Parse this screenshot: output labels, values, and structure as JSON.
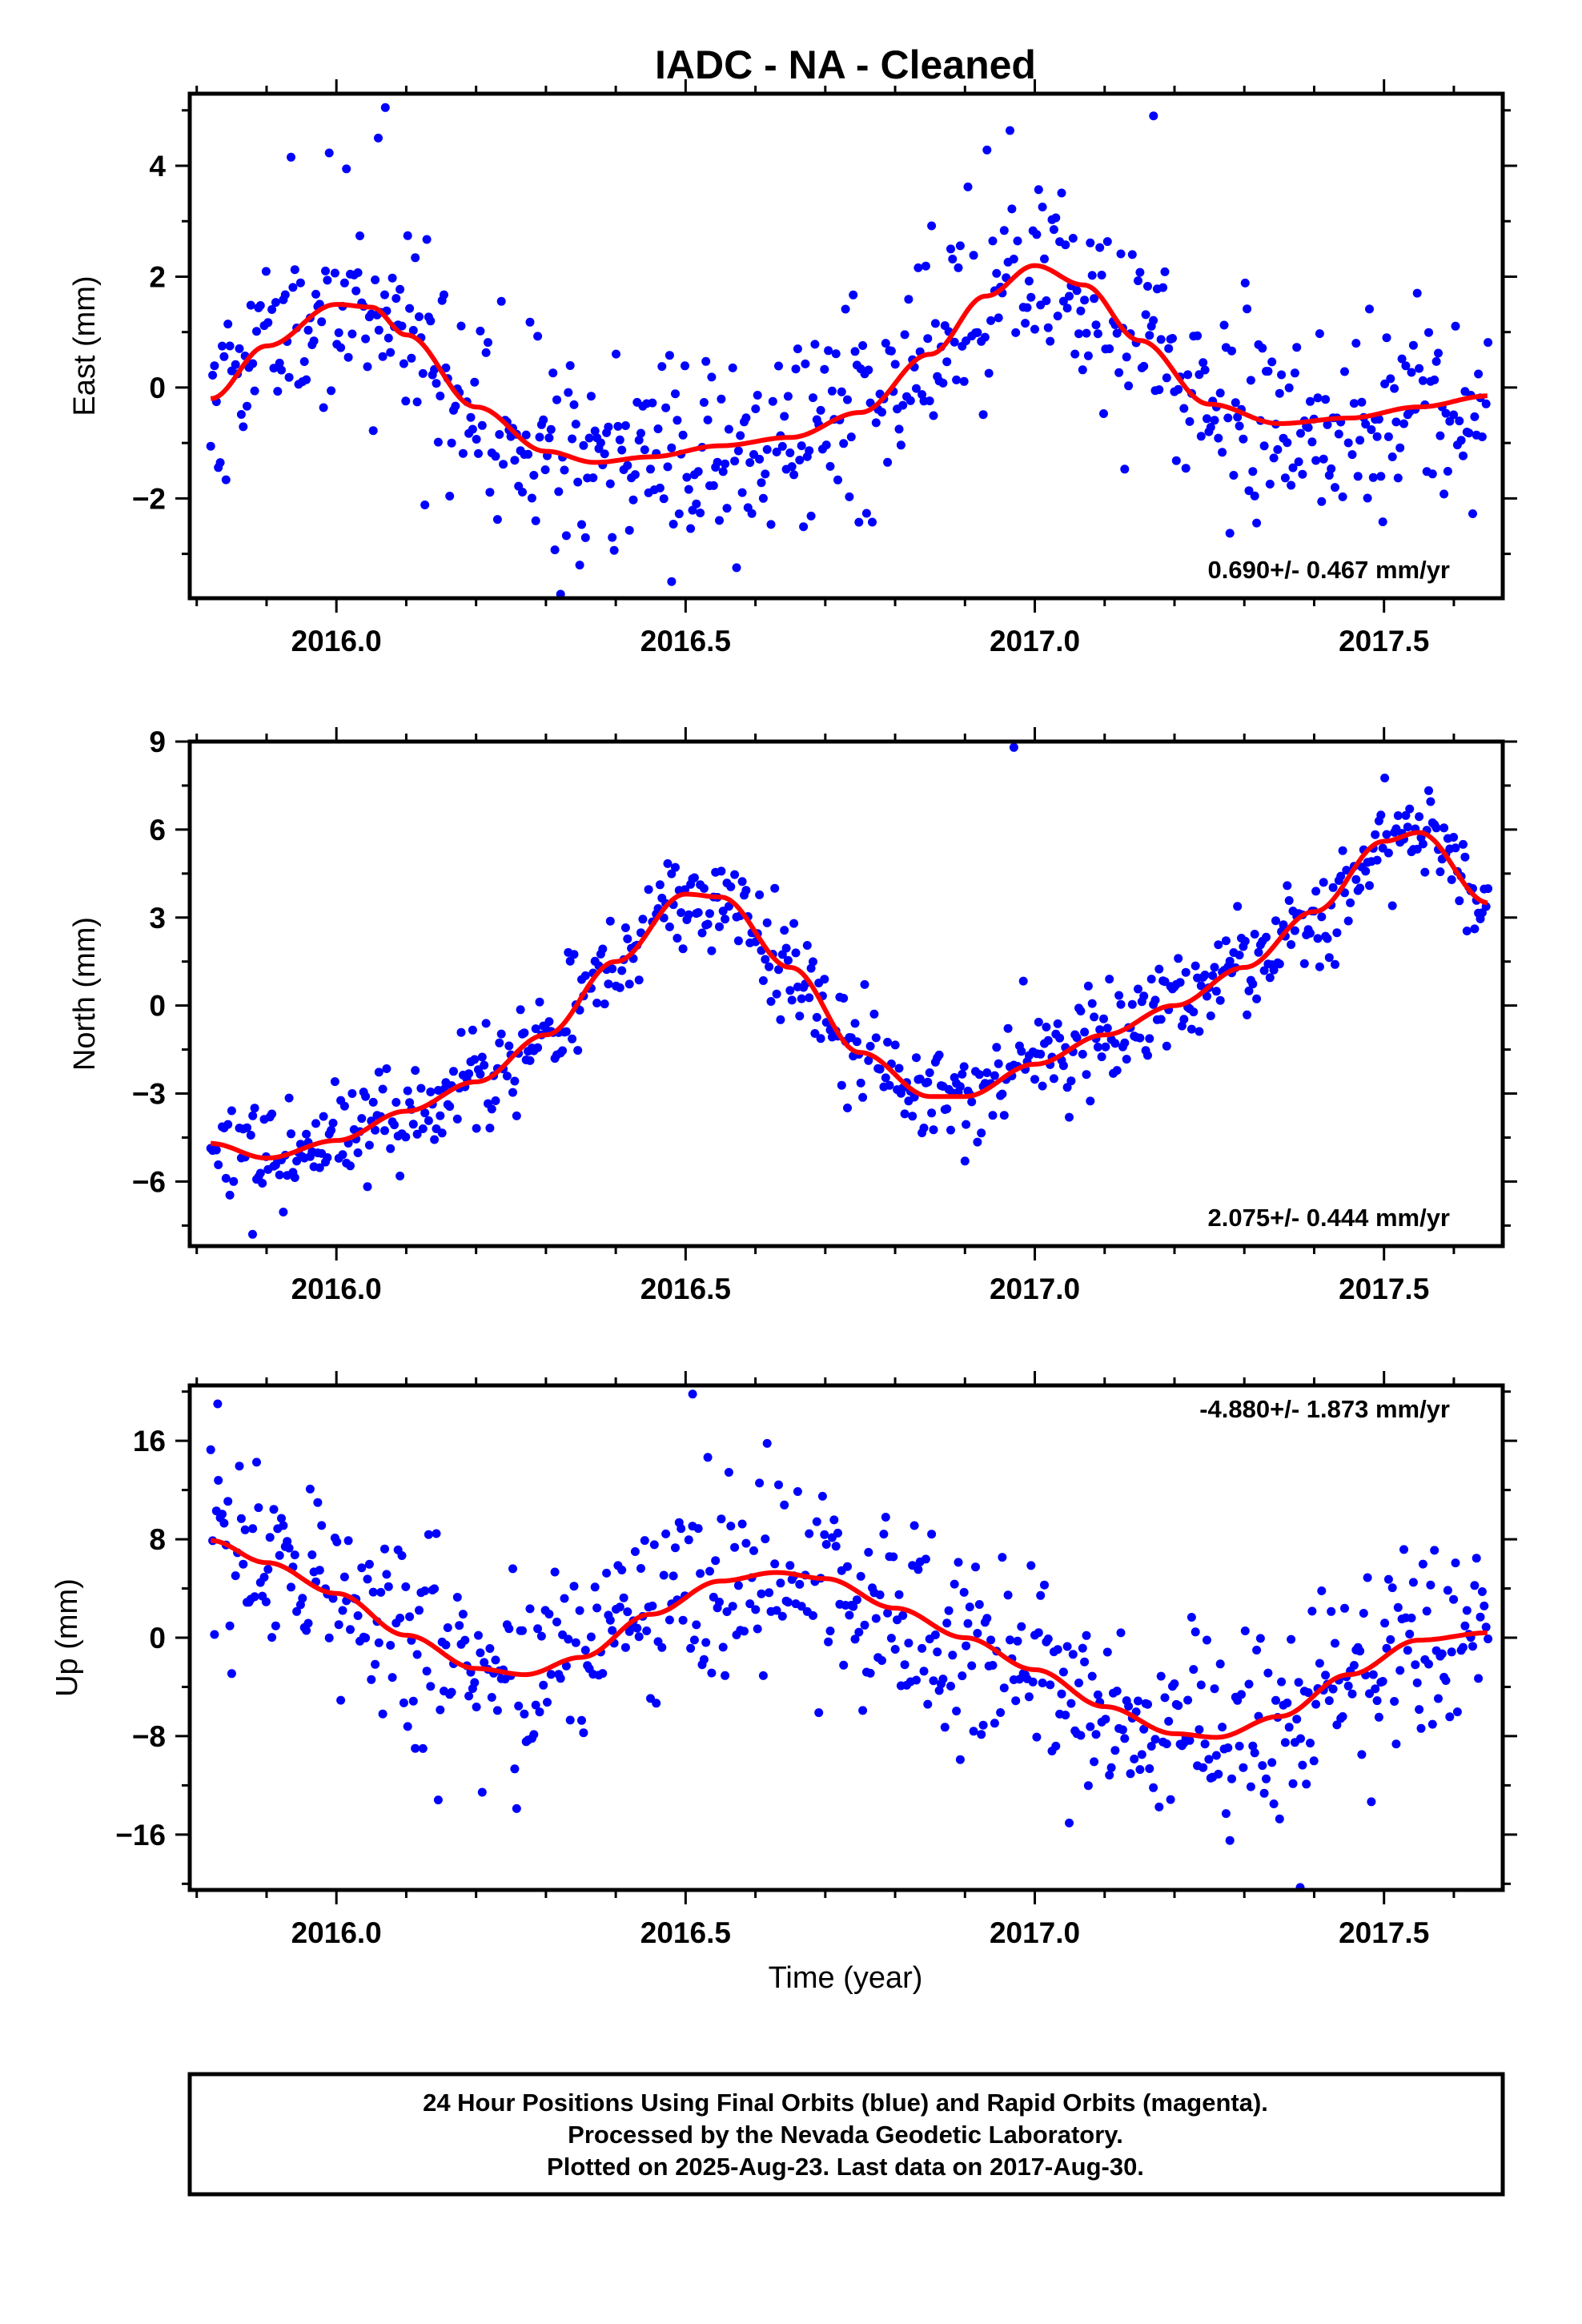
{
  "title": "IADC  - NA - Cleaned",
  "xlabel": "Time (year)",
  "footer": {
    "lines": [
      "24 Hour Positions Using Final Orbits (blue) and Rapid Orbits (magenta).",
      "Processed by the Nevada Geodetic Laboratory.",
      "Plotted on 2025-Aug-23. Last data on 2017-Aug-30."
    ]
  },
  "colors": {
    "points": "#0000ff",
    "fit": "#ff0000",
    "frame": "#000000",
    "background": "#ffffff"
  },
  "chart_data": [
    {
      "type": "scatter",
      "ylabel": "East (mm)",
      "rate_label": "0.690+/- 0.467 mm/yr",
      "xlim": [
        2015.79,
        2017.67
      ],
      "ylim": [
        -3.8,
        5.3
      ],
      "x_ticks": [
        2016.0,
        2016.5,
        2017.0,
        2017.5
      ],
      "x_tick_labels": [
        "2016.0",
        "2016.5",
        "2017.0",
        "2017.5"
      ],
      "y_ticks": [
        -2,
        0,
        2,
        4
      ],
      "y_tick_labels": [
        "−2",
        "0",
        "2",
        "4"
      ],
      "series": [
        {
          "kind": "points",
          "color": "#0000ff",
          "seed": 11,
          "amp": [
            1.4,
            -0.1,
            0.85,
            0.15
          ],
          "trend": 0.69,
          "offset": 0.08,
          "noise": 0.9,
          "outliers": [
            [
              2016.07,
              5.05
            ],
            [
              2016.06,
              4.5
            ],
            [
              2016.48,
              -3.5
            ],
            [
              2017.17,
              4.9
            ]
          ]
        },
        {
          "kind": "fit",
          "color": "#ff0000",
          "x": [
            2015.82,
            2015.9,
            2016.0,
            2016.05,
            2016.1,
            2016.2,
            2016.3,
            2016.37,
            2016.45,
            2016.55,
            2016.65,
            2016.75,
            2016.85,
            2016.93,
            2017.0,
            2017.07,
            2017.15,
            2017.25,
            2017.35,
            2017.45,
            2017.55,
            2017.65
          ],
          "y": [
            -0.2,
            0.75,
            1.5,
            1.45,
            0.95,
            -0.35,
            -1.15,
            -1.35,
            -1.25,
            -1.05,
            -0.9,
            -0.45,
            0.6,
            1.65,
            2.2,
            1.85,
            0.85,
            -0.3,
            -0.65,
            -0.55,
            -0.35,
            -0.15
          ]
        }
      ]
    },
    {
      "type": "scatter",
      "ylabel": "North (mm)",
      "rate_label": "2.075+/- 0.444 mm/yr",
      "xlim": [
        2015.79,
        2017.67
      ],
      "ylim": [
        -8.2,
        9.0
      ],
      "x_ticks": [
        2016.0,
        2016.5,
        2017.0,
        2017.5
      ],
      "x_tick_labels": [
        "2016.0",
        "2016.5",
        "2017.0",
        "2017.5"
      ],
      "y_ticks": [
        -6,
        -3,
        0,
        3,
        6,
        9
      ],
      "y_tick_labels": [
        "−6",
        "−3",
        "0",
        "3",
        "6",
        "9"
      ],
      "series": [
        {
          "kind": "points",
          "color": "#0000ff",
          "seed": 29,
          "trend": 2.075,
          "offset": 0.0,
          "noise": 0.85,
          "outliers": [
            [
              2016.97,
              8.8
            ],
            [
              2015.88,
              -7.8
            ],
            [
              2016.9,
              -5.3
            ]
          ]
        },
        {
          "kind": "fit",
          "color": "#ff0000",
          "x": [
            2015.82,
            2015.9,
            2016.0,
            2016.1,
            2016.2,
            2016.3,
            2016.4,
            2016.5,
            2016.55,
            2016.65,
            2016.75,
            2016.85,
            2016.9,
            2017.0,
            2017.1,
            2017.2,
            2017.3,
            2017.4,
            2017.5,
            2017.55,
            2017.65
          ],
          "y": [
            -4.7,
            -5.2,
            -4.6,
            -3.6,
            -2.6,
            -1.0,
            1.5,
            3.8,
            3.7,
            1.3,
            -1.6,
            -3.1,
            -3.1,
            -2.0,
            -1.0,
            0.0,
            1.3,
            3.2,
            5.6,
            5.9,
            3.5
          ]
        }
      ]
    },
    {
      "type": "scatter",
      "ylabel": "Up (mm)",
      "rate_label": "-4.880+/- 1.873 mm/yr",
      "xlim": [
        2015.79,
        2017.67
      ],
      "ylim": [
        -20.5,
        20.5
      ],
      "x_ticks": [
        2016.0,
        2016.5,
        2017.0,
        2017.5
      ],
      "x_tick_labels": [
        "2016.0",
        "2016.5",
        "2017.0",
        "2017.5"
      ],
      "y_ticks": [
        -16,
        -8,
        0,
        8,
        16
      ],
      "y_tick_labels": [
        "−16",
        "−8",
        "0",
        "8",
        "16"
      ],
      "series": [
        {
          "kind": "points",
          "color": "#0000ff",
          "seed": 53,
          "trend": -4.88,
          "offset": 0.0,
          "noise": 4.3,
          "outliers": [
            [
              2016.51,
              19.8
            ],
            [
              2015.83,
              19.0
            ],
            [
              2017.38,
              -20.3
            ]
          ]
        },
        {
          "kind": "fit",
          "color": "#ff0000",
          "x": [
            2015.82,
            2015.9,
            2016.0,
            2016.1,
            2016.2,
            2016.27,
            2016.35,
            2016.45,
            2016.55,
            2016.63,
            2016.7,
            2016.8,
            2016.9,
            2017.0,
            2017.1,
            2017.2,
            2017.26,
            2017.35,
            2017.45,
            2017.55,
            2017.65
          ],
          "y": [
            7.9,
            6.1,
            3.6,
            0.2,
            -2.5,
            -3.0,
            -1.6,
            1.9,
            4.6,
            5.3,
            4.8,
            2.4,
            0.0,
            -2.6,
            -5.6,
            -7.8,
            -8.1,
            -6.4,
            -3.0,
            -0.2,
            0.4
          ]
        }
      ]
    }
  ]
}
